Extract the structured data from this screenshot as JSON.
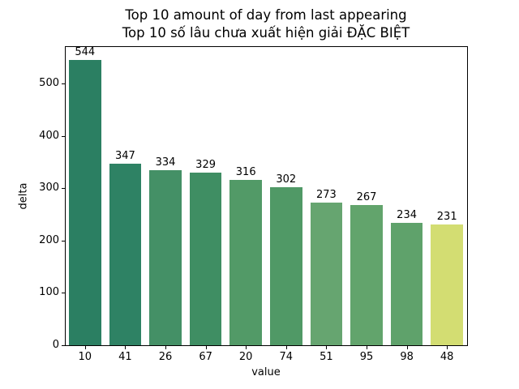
{
  "chart_data": {
    "type": "bar",
    "title": "Top 10 amount of day from last appearing",
    "subtitle": "Top 10 số lâu chưa xuất hiện giải ĐẶC BIỆT",
    "xlabel": "value",
    "ylabel": "delta",
    "categories": [
      "10",
      "41",
      "26",
      "67",
      "20",
      "74",
      "51",
      "95",
      "98",
      "48"
    ],
    "values": [
      544,
      347,
      334,
      329,
      316,
      302,
      273,
      267,
      234,
      231
    ],
    "bar_labels": [
      "544",
      "347",
      "334",
      "329",
      "316",
      "302",
      "273",
      "267",
      "234",
      "231"
    ],
    "bar_colors": [
      "#2b7f62",
      "#2e8264",
      "#449066",
      "#3f8e63",
      "#529a67",
      "#509966",
      "#66a570",
      "#62a46c",
      "#5fa26b",
      "#d3dd72"
    ],
    "yticks": [
      0,
      100,
      200,
      300,
      400,
      500
    ],
    "ylim": [
      0,
      571
    ],
    "grid": false,
    "legend": null,
    "background_color": "#ffffff",
    "spine_color": "#000000",
    "text_color": "#000000"
  }
}
